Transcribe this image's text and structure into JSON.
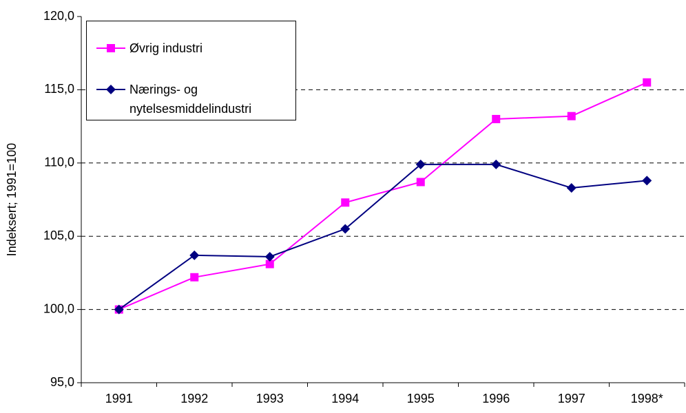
{
  "chart_data": {
    "type": "line",
    "y_label": "Indeksert; 1991=100",
    "categories": [
      "1991",
      "1992",
      "1993",
      "1994",
      "1995",
      "1996",
      "1997",
      "1998*"
    ],
    "series": [
      {
        "name": "Øvrig industri",
        "color": "#ff00ff",
        "marker": "square",
        "values": [
          100,
          102.2,
          103.1,
          107.3,
          108.7,
          113.0,
          113.2,
          115.5
        ]
      },
      {
        "name": "Nærings- og nytelsesmiddelindustri",
        "color": "#000080",
        "marker": "diamond",
        "values": [
          100,
          103.7,
          103.6,
          105.5,
          109.9,
          109.9,
          108.3,
          108.8
        ]
      }
    ],
    "ylim": [
      95,
      120
    ],
    "yticks": [
      {
        "value": 95,
        "label": "95,0"
      },
      {
        "value": 100,
        "label": "100,0"
      },
      {
        "value": 105,
        "label": "105,0"
      },
      {
        "value": 110,
        "label": "110,0"
      },
      {
        "value": 115,
        "label": "115,0"
      },
      {
        "value": 120,
        "label": "120,0"
      }
    ],
    "grid": true,
    "legend": "upper left"
  }
}
